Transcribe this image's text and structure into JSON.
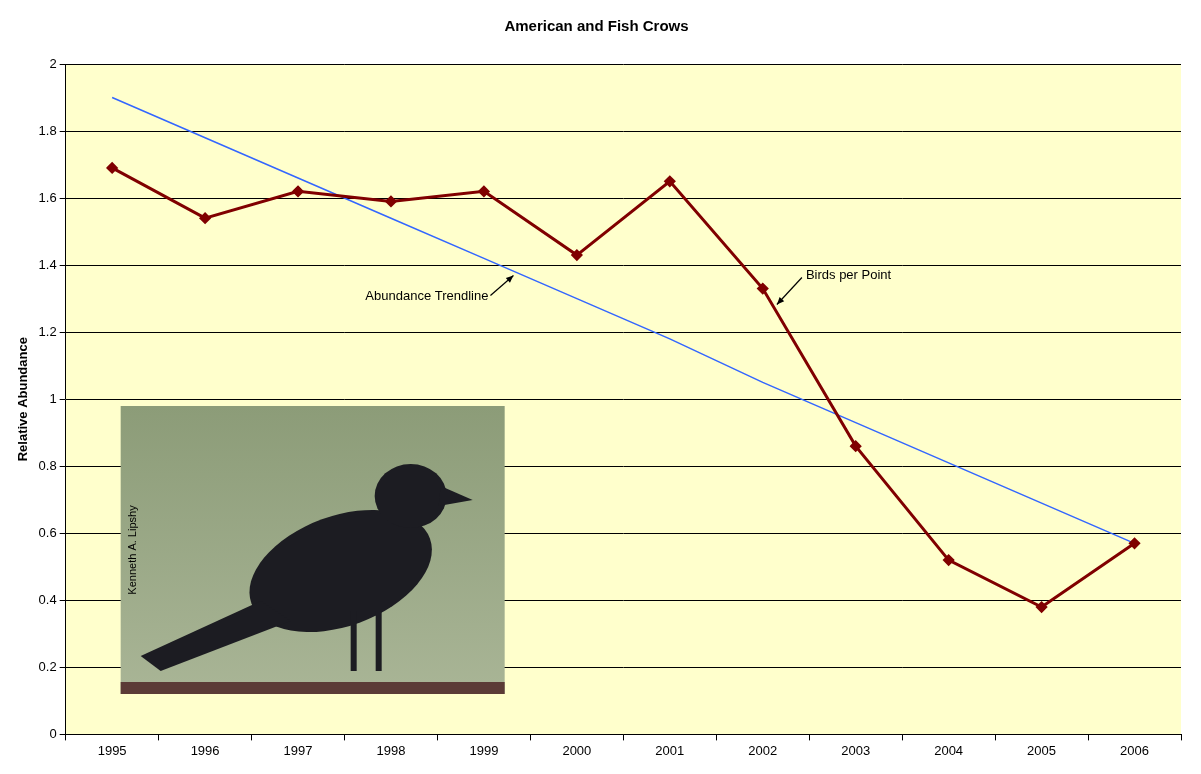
{
  "chart_data": {
    "type": "line",
    "title": "American and Fish Crows",
    "y_label": "Relative Abundance",
    "categories": [
      "1995",
      "1996",
      "1997",
      "1998",
      "1999",
      "2000",
      "2001",
      "2002",
      "2003",
      "2004",
      "2005",
      "2006"
    ],
    "series": [
      {
        "name": "Birds per Point",
        "color": "#800000",
        "marker": "diamond",
        "line_style": "solid",
        "values": [
          1.69,
          1.54,
          1.62,
          1.59,
          1.62,
          1.43,
          1.65,
          1.33,
          0.86,
          0.52,
          0.38,
          0.57
        ]
      },
      {
        "name": "Abundance Trendline",
        "color": "#3366FF",
        "marker": "none",
        "line_style": "solid",
        "values": [
          1.9,
          1.78,
          1.66,
          1.54,
          1.42,
          1.3,
          1.18,
          1.05,
          0.93,
          0.81,
          0.69,
          0.57
        ]
      }
    ],
    "ylim": [
      0,
      2
    ],
    "yticks": [
      0,
      0.2,
      0.4,
      0.6,
      0.8,
      1,
      1.2,
      1.4,
      1.6,
      1.8,
      2
    ],
    "grid": true,
    "photo_credit": "Kenneth A. Lipshy"
  }
}
